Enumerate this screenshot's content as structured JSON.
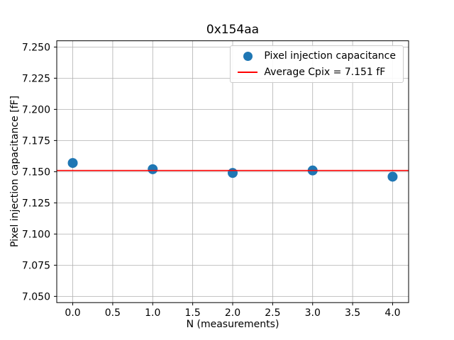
{
  "chart_data": {
    "type": "scatter",
    "title": "0x154aa",
    "xlabel": "N (measurements)",
    "ylabel": "Pixel injection capacitance [fF]",
    "x": [
      0.0,
      1.0,
      2.0,
      3.0,
      4.0
    ],
    "series": [
      {
        "name": "Pixel injection capacitance",
        "type": "scatter",
        "values": [
          7.157,
          7.152,
          7.149,
          7.151,
          7.146
        ],
        "color": "#1f77b4"
      },
      {
        "name": "Average Cpix = 7.151 fF",
        "type": "hline",
        "value": 7.151,
        "color": "#ff0000"
      }
    ],
    "xlim": [
      -0.2,
      4.2
    ],
    "ylim": [
      7.045,
      7.255
    ],
    "xticks": [
      0.0,
      0.5,
      1.0,
      1.5,
      2.0,
      2.5,
      3.0,
      3.5,
      4.0
    ],
    "yticks": [
      7.05,
      7.075,
      7.1,
      7.125,
      7.15,
      7.175,
      7.2,
      7.225,
      7.25
    ],
    "grid": true,
    "legend_position": "upper right",
    "colors": {
      "grid": "#b0b0b0",
      "axes": "#000000",
      "background": "#ffffff",
      "text": "#000000"
    }
  }
}
